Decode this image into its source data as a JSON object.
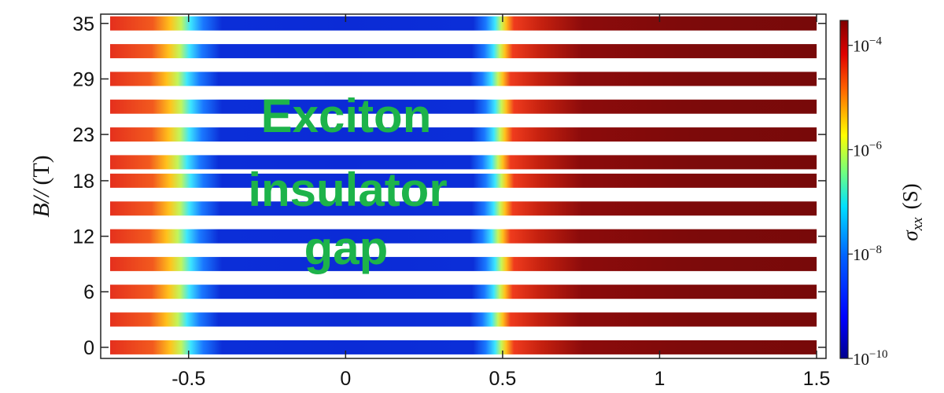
{
  "chart_data": {
    "type": "heatmap",
    "title": "",
    "xlabel": "",
    "ylabel": "B//",
    "ylabel_unit": "(T)",
    "xlim": [
      -0.78,
      1.53
    ],
    "ylim": [
      -1.2,
      36.0
    ],
    "x_ticks": [
      -0.5,
      0,
      0.5,
      1,
      1.5
    ],
    "x_tick_labels": [
      "-0.5",
      "0",
      "0.5",
      "1",
      "1.5"
    ],
    "y_ticks": [
      0,
      6,
      12,
      18,
      23,
      29,
      35
    ],
    "y_tick_labels": [
      "0",
      "6",
      "12",
      "18",
      "23",
      "29",
      "35"
    ],
    "field_values_T": [
      0,
      3,
      6,
      9,
      12,
      15,
      18,
      20,
      23,
      26,
      29,
      32,
      35
    ],
    "x_range_measured": [
      -0.75,
      1.5
    ],
    "gap_edges_x": [
      -0.5,
      0.5
    ],
    "colorbar": {
      "label_symbol": "σ",
      "label_subscript": "xx",
      "label_unit": "(S)",
      "scale": "log",
      "range_S": [
        1e-10,
        0.0003
      ],
      "ticks": [
        {
          "base": "10",
          "exp": "−4",
          "value": 0.0001
        },
        {
          "base": "10",
          "exp": "−6",
          "value": 1e-06
        },
        {
          "base": "10",
          "exp": "−8",
          "value": 1e-08
        },
        {
          "base": "10",
          "exp": "−10",
          "value": 1e-10
        }
      ]
    },
    "annotation": [
      "Exciton",
      "insulator",
      "gap"
    ],
    "grid": false,
    "colors": {
      "low": "#0c1e9a",
      "high": "#7a0a0a",
      "annotation": "#1db34a"
    }
  }
}
